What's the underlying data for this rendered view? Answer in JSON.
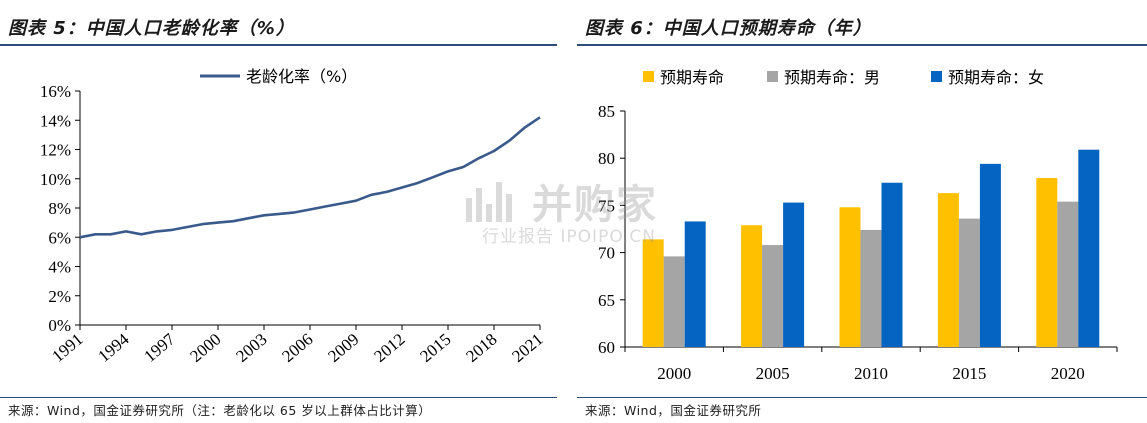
{
  "left_panel": {
    "title": "图表 5：中国人口老龄化率（%）",
    "source": "来源：Wind，国金证券研究所（注：老龄化以 65 岁以上群体占比计算）"
  },
  "right_panel": {
    "title": "图表 6：中国人口预期寿命（年）",
    "source": "来源：Wind，国金证券研究所"
  },
  "watermark": {
    "brand": "并购家",
    "sub": "行业报告 IPOIPO.CN",
    "logo_icon": "bar-chart-logo-icon"
  },
  "chart_data": [
    {
      "type": "line",
      "title": "",
      "xlabel": "",
      "ylabel": "",
      "x": [
        1991,
        1992,
        1993,
        1994,
        1995,
        1996,
        1997,
        1998,
        1999,
        2000,
        2001,
        2002,
        2003,
        2004,
        2005,
        2006,
        2007,
        2008,
        2009,
        2010,
        2011,
        2012,
        2013,
        2014,
        2015,
        2016,
        2017,
        2018,
        2019,
        2020,
        2021
      ],
      "xticklabels": [
        "1991",
        "1994",
        "1997",
        "2000",
        "2003",
        "2006",
        "2009",
        "2012",
        "2015",
        "2018",
        "2021"
      ],
      "xtick_positions": [
        1991,
        1994,
        1997,
        2000,
        2003,
        2006,
        2009,
        2012,
        2015,
        2018,
        2021
      ],
      "yticklabels": [
        "0%",
        "2%",
        "4%",
        "6%",
        "8%",
        "10%",
        "12%",
        "14%",
        "16%"
      ],
      "ylim": [
        0,
        16
      ],
      "series": [
        {
          "name": "老龄化率（%）",
          "color": "#3a5a8c",
          "values": [
            6.0,
            6.2,
            6.2,
            6.4,
            6.2,
            6.4,
            6.5,
            6.7,
            6.9,
            7.0,
            7.1,
            7.3,
            7.5,
            7.6,
            7.7,
            7.9,
            8.1,
            8.3,
            8.5,
            8.9,
            9.1,
            9.4,
            9.7,
            10.1,
            10.5,
            10.8,
            11.4,
            11.9,
            12.6,
            13.5,
            14.2
          ]
        }
      ],
      "legend": "top-center",
      "grid": false
    },
    {
      "type": "bar",
      "title": "",
      "xlabel": "",
      "ylabel": "",
      "categories": [
        "2000",
        "2005",
        "2010",
        "2015",
        "2020"
      ],
      "ylim": [
        60,
        85
      ],
      "yticklabels": [
        "60",
        "65",
        "70",
        "75",
        "80",
        "85"
      ],
      "series": [
        {
          "name": "预期寿命",
          "color": "#ffc000",
          "values": [
            71.4,
            72.9,
            74.8,
            76.3,
            77.9
          ]
        },
        {
          "name": "预期寿命：男",
          "color": "#a5a5a5",
          "values": [
            69.6,
            70.8,
            72.4,
            73.6,
            75.4
          ]
        },
        {
          "name": "预期寿命：女",
          "color": "#0563c1",
          "values": [
            73.3,
            75.3,
            77.4,
            79.4,
            80.9
          ]
        }
      ],
      "legend": "top",
      "grid": false
    }
  ]
}
